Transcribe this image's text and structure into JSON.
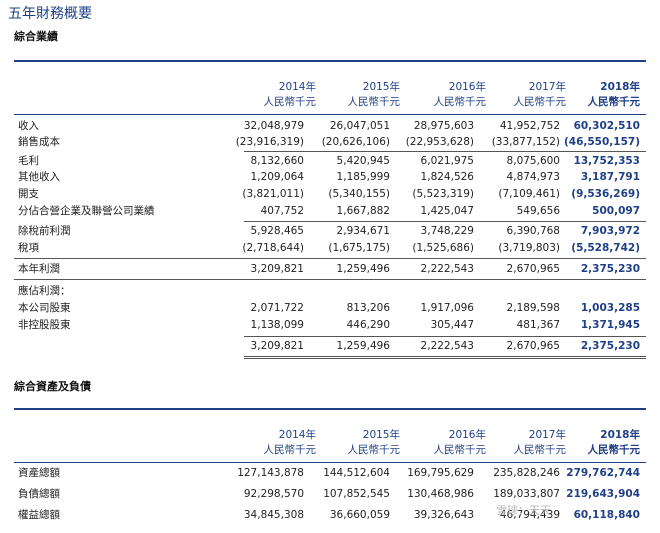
{
  "title": "五年財務概要",
  "sections": [
    {
      "title": "綜合業績",
      "years": [
        "2014年",
        "2015年",
        "2016年",
        "2017年",
        "2018年"
      ],
      "unit": "人民幣千元",
      "rows": [
        {
          "label": "收入",
          "values": [
            "32,048,979",
            "26,047,051",
            "28,975,603",
            "41,952,752",
            "60,302,510"
          ]
        },
        {
          "label": "銷售成本",
          "values": [
            "(23,916,319)",
            "(20,626,106)",
            "(22,953,628)",
            "(33,877,152)",
            "(46,550,157)"
          ]
        },
        {
          "label": "毛利",
          "values": [
            "8,132,660",
            "5,420,945",
            "6,021,975",
            "8,075,600",
            "13,752,353"
          ]
        },
        {
          "label": "其他收入",
          "values": [
            "1,209,064",
            "1,185,999",
            "1,824,526",
            "4,874,973",
            "3,187,791"
          ]
        },
        {
          "label": "開支",
          "values": [
            "(3,821,011)",
            "(5,340,155)",
            "(5,523,319)",
            "(7,109,461)",
            "(9,536,269)"
          ]
        },
        {
          "label": "分佔合營企業及聯營公司業績",
          "values": [
            "407,752",
            "1,667,882",
            "1,425,047",
            "549,656",
            "500,097"
          ]
        },
        {
          "label": "除稅前利潤",
          "values": [
            "5,928,465",
            "2,934,671",
            "3,748,229",
            "6,390,768",
            "7,903,972"
          ]
        },
        {
          "label": "稅項",
          "values": [
            "(2,718,644)",
            "(1,675,175)",
            "(1,525,686)",
            "(3,719,803)",
            "(5,528,742)"
          ]
        },
        {
          "label": "本年利潤",
          "values": [
            "3,209,821",
            "1,259,496",
            "2,222,543",
            "2,670,965",
            "2,375,230"
          ]
        },
        {
          "label": "應佔利潤：",
          "values": [
            "",
            "",
            "",
            "",
            ""
          ]
        },
        {
          "label": "本公司股東",
          "values": [
            "2,071,722",
            "813,206",
            "1,917,096",
            "2,189,598",
            "1,003,285"
          ]
        },
        {
          "label": "非控股股東",
          "values": [
            "1,138,099",
            "446,290",
            "305,447",
            "481,367",
            "1,371,945"
          ]
        },
        {
          "label": "",
          "values": [
            "3,209,821",
            "1,259,496",
            "2,222,543",
            "2,670,965",
            "2,375,230"
          ]
        }
      ]
    },
    {
      "title": "綜合資產及負債",
      "years": [
        "2014年",
        "2015年",
        "2016年",
        "2017年",
        "2018年"
      ],
      "unit": "人民幣千元",
      "rows": [
        {
          "label": "資產總額",
          "values": [
            "127,143,878",
            "144,512,604",
            "169,795,629",
            "235,828,246",
            "279,762,744"
          ]
        },
        {
          "label": "負債總額",
          "values": [
            "92,298,570",
            "107,852,545",
            "130,468,986",
            "189,033,807",
            "219,643,904"
          ]
        },
        {
          "label": "權益總額",
          "values": [
            "34,845,308",
            "36,660,059",
            "39,326,643",
            "46,794,439",
            "60,118,840"
          ]
        }
      ]
    }
  ],
  "watermark": "雪球：天天"
}
